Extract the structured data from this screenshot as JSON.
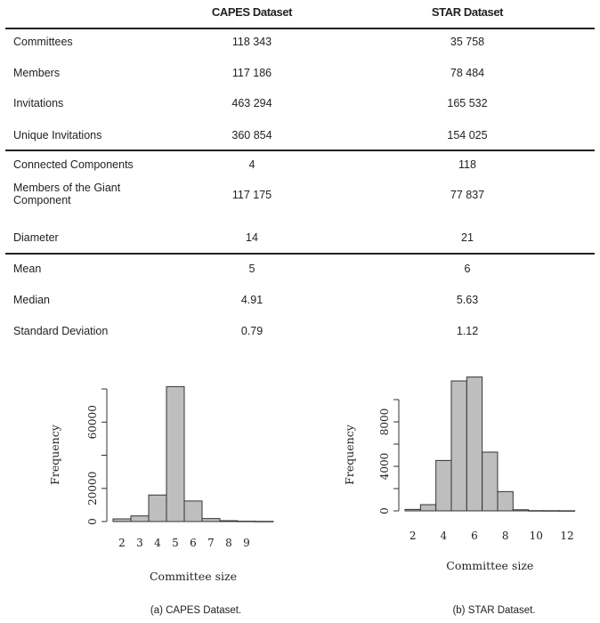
{
  "table": {
    "headers": [
      "",
      "CAPES Dataset",
      "STAR Dataset"
    ],
    "groups": [
      [
        {
          "label": "Committees",
          "capes": "118 343",
          "star": "35 758"
        },
        {
          "label": "Members",
          "capes": "117 186",
          "star": "78 484"
        },
        {
          "label": "Invitations",
          "capes": "463 294",
          "star": "165 532"
        },
        {
          "label": "Unique Invitations",
          "capes": "360 854",
          "star": "154 025"
        }
      ],
      [
        {
          "label": "Connected Components",
          "capes": "4",
          "star": "118"
        },
        {
          "label": "Members of the Giant Component",
          "capes": "117 175",
          "star": "77 837"
        },
        {
          "label": "Diameter",
          "capes": "14",
          "star": "21"
        }
      ],
      [
        {
          "label": "Mean",
          "capes": "5",
          "star": "6"
        },
        {
          "label": "Median",
          "capes": "4.91",
          "star": "5.63"
        },
        {
          "label": "Standard Deviation",
          "capes": "0.79",
          "star": "1.12"
        }
      ]
    ]
  },
  "chart_data": [
    {
      "type": "bar",
      "title": "",
      "caption": "(a) CAPES Dataset.",
      "xlabel": "Committee size",
      "ylabel": "Frequency",
      "categories": [
        2,
        3,
        4,
        5,
        6,
        7,
        8,
        9,
        10
      ],
      "values": [
        1600,
        3400,
        16000,
        81400,
        12400,
        1800,
        500,
        200,
        100
      ],
      "xticks": [
        2,
        3,
        4,
        5,
        6,
        7,
        8,
        9
      ],
      "yticks": [
        0,
        20000,
        40000,
        60000,
        80000
      ],
      "ytick_labels": [
        "0",
        "20000",
        "",
        "60000",
        ""
      ],
      "ylim": [
        0,
        82000
      ],
      "xlim": [
        1.5,
        10.5
      ],
      "bar_color": "#bebebe"
    },
    {
      "type": "bar",
      "title": "",
      "caption": "(b) STAR Dataset.",
      "xlabel": "Committee size",
      "ylabel": "Frequency",
      "categories": [
        2,
        3,
        4,
        5,
        6,
        7,
        8,
        9,
        10,
        11,
        12
      ],
      "values": [
        130,
        560,
        4530,
        11680,
        12030,
        5280,
        1730,
        100,
        20,
        15,
        10
      ],
      "xticks": [
        2,
        4,
        6,
        8,
        10,
        12
      ],
      "yticks": [
        0,
        2000,
        4000,
        6000,
        8000,
        10000
      ],
      "ytick_labels": [
        "0",
        "",
        "4000",
        "",
        "8000",
        ""
      ],
      "ylim": [
        0,
        12100
      ],
      "xlim": [
        1.5,
        12.5
      ],
      "bar_color": "#bebebe"
    }
  ]
}
